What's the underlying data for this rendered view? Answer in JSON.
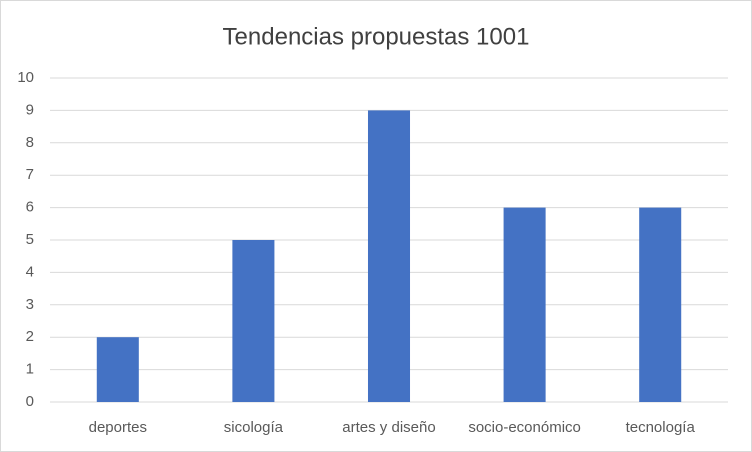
{
  "chart_data": {
    "type": "bar",
    "title": "Tendencias propuestas 1001",
    "categories": [
      "deportes",
      "sicología",
      "artes y diseño",
      "socio-económico",
      "tecnología"
    ],
    "values": [
      2,
      5,
      9,
      6,
      6
    ],
    "color": "#4472c4",
    "ylim": [
      0,
      10
    ],
    "yticks": [
      0,
      1,
      2,
      3,
      4,
      5,
      6,
      7,
      8,
      9,
      10
    ],
    "grid": true
  }
}
